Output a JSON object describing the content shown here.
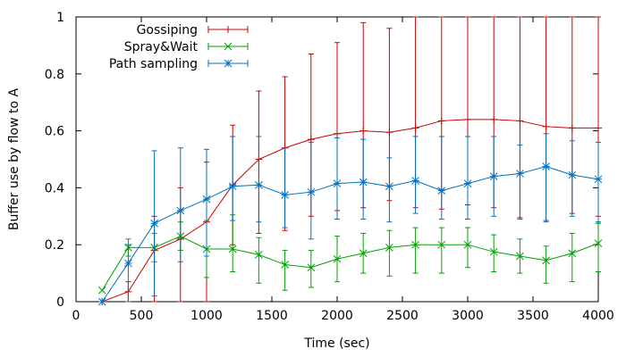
{
  "chart_data": {
    "type": "line",
    "xlabel": "Time (sec)",
    "ylabel": "Buffer use by flow to A",
    "xlim": [
      0,
      4000
    ],
    "ylim": [
      0,
      1
    ],
    "xticks": [
      0,
      500,
      1000,
      1500,
      2000,
      2500,
      3000,
      3500,
      4000
    ],
    "xtick_labels": [
      "0",
      "500",
      "1000",
      "1500",
      "2000",
      "2500",
      "3000",
      "3500",
      "4000"
    ],
    "yticks": [
      0,
      0.2,
      0.4,
      0.6,
      0.8,
      1
    ],
    "ytick_labels": [
      "0",
      "0.2",
      "0.4",
      "0.6",
      "0.8",
      "1"
    ],
    "grid": false,
    "legend_position": "top-left",
    "x": [
      200,
      400,
      600,
      800,
      1000,
      1200,
      1400,
      1600,
      1800,
      2000,
      2200,
      2400,
      2600,
      2800,
      3000,
      3200,
      3400,
      3600,
      3800,
      4000
    ],
    "series": [
      {
        "name": "Gossiping",
        "color": "#cc0000",
        "marker": "plus",
        "values": [
          0.0,
          0.035,
          0.18,
          0.22,
          0.28,
          0.41,
          0.5,
          0.54,
          0.57,
          0.59,
          0.6,
          0.595,
          0.61,
          0.635,
          0.64,
          0.64,
          0.635,
          0.615,
          0.61,
          0.61
        ],
        "err_low": [
          0.0,
          0.035,
          0.18,
          0.22,
          0.28,
          0.21,
          0.26,
          0.29,
          0.27,
          0.27,
          0.27,
          0.24,
          0.28,
          0.31,
          0.3,
          0.31,
          0.34,
          0.33,
          0.3,
          0.31
        ],
        "err_high": [
          0.0,
          0.035,
          0.12,
          0.18,
          0.21,
          0.21,
          0.24,
          0.25,
          0.3,
          0.32,
          0.38,
          0.365,
          0.39,
          0.365,
          0.36,
          0.36,
          0.365,
          0.385,
          0.39,
          0.39
        ]
      },
      {
        "name": "Spray&Wait",
        "color": "#00a000",
        "marker": "x",
        "values": [
          0.04,
          0.19,
          0.19,
          0.23,
          0.185,
          0.185,
          0.165,
          0.13,
          0.12,
          0.15,
          0.17,
          0.19,
          0.2,
          0.2,
          0.2,
          0.175,
          0.16,
          0.145,
          0.17,
          0.205
        ],
        "err_low": [
          0.0,
          0.03,
          0.05,
          0.05,
          0.1,
          0.08,
          0.1,
          0.09,
          0.07,
          0.08,
          0.07,
          0.1,
          0.1,
          0.1,
          0.08,
          0.07,
          0.06,
          0.08,
          0.1,
          0.1
        ],
        "err_high": [
          0.0,
          0.03,
          0.05,
          0.05,
          0.1,
          0.12,
          0.06,
          0.05,
          0.06,
          0.08,
          0.07,
          0.06,
          0.06,
          0.06,
          0.06,
          0.06,
          0.06,
          0.05,
          0.07,
          0.07
        ]
      },
      {
        "name": "Path sampling",
        "color": "#0070c0",
        "marker": "star",
        "values": [
          0.0,
          0.135,
          0.275,
          0.32,
          0.36,
          0.405,
          0.41,
          0.375,
          0.385,
          0.415,
          0.42,
          0.405,
          0.425,
          0.39,
          0.415,
          0.44,
          0.45,
          0.475,
          0.445,
          0.43
        ],
        "err_low": [
          0.0,
          0.135,
          0.255,
          0.18,
          0.2,
          0.12,
          0.13,
          0.115,
          0.165,
          0.125,
          0.13,
          0.125,
          0.115,
          0.1,
          0.125,
          0.14,
          0.16,
          0.195,
          0.145,
          0.15
        ],
        "err_high": [
          0.0,
          0.065,
          0.255,
          0.22,
          0.175,
          0.175,
          0.17,
          0.165,
          0.175,
          0.16,
          0.15,
          0.1,
          0.155,
          0.19,
          0.165,
          0.14,
          0.1,
          0.115,
          0.12,
          0.13
        ]
      }
    ]
  }
}
